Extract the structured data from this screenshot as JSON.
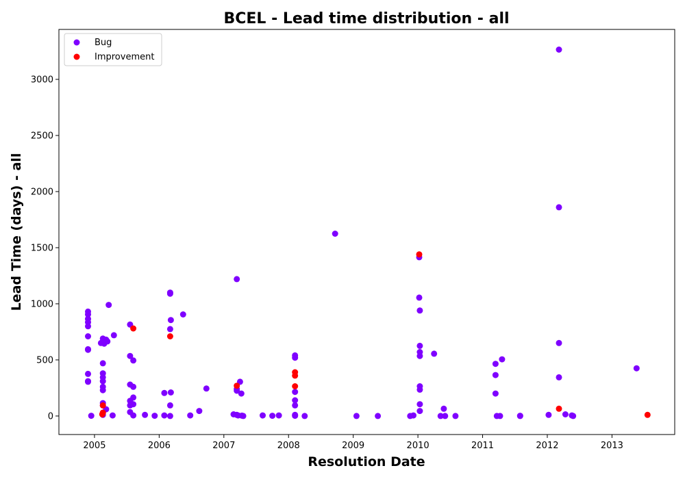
{
  "chart_data": {
    "type": "scatter",
    "title": "BCEL - Lead time distribution - all",
    "xlabel": "Resolution Date",
    "ylabel": "Lead Time (days) - all",
    "x_type": "year",
    "xlim": [
      2004.45,
      2013.97
    ],
    "ylim": [
      -165,
      3445
    ],
    "x_ticks": [
      2005,
      2006,
      2007,
      2008,
      2009,
      2010,
      2011,
      2012,
      2013
    ],
    "y_ticks": [
      0,
      500,
      1000,
      1500,
      2000,
      2500,
      3000
    ],
    "grid": false,
    "legend_position": "upper-left",
    "series": [
      {
        "name": "Bug",
        "color": "#7f00ff",
        "points": [
          [
            2004.95,
            2
          ],
          [
            2004.9,
            930
          ],
          [
            2004.9,
            905
          ],
          [
            2004.9,
            865
          ],
          [
            2004.9,
            835
          ],
          [
            2004.9,
            800
          ],
          [
            2004.9,
            710
          ],
          [
            2004.9,
            595
          ],
          [
            2004.9,
            590
          ],
          [
            2004.9,
            375
          ],
          [
            2004.9,
            310
          ],
          [
            2004.9,
            305
          ],
          [
            2005.1,
            650
          ],
          [
            2005.15,
            645
          ],
          [
            2005.13,
            690
          ],
          [
            2005.18,
            680
          ],
          [
            2005.2,
            665
          ],
          [
            2005.22,
            990
          ],
          [
            2005.3,
            720
          ],
          [
            2005.13,
            470
          ],
          [
            2005.13,
            380
          ],
          [
            2005.13,
            345
          ],
          [
            2005.13,
            310
          ],
          [
            2005.13,
            260
          ],
          [
            2005.13,
            230
          ],
          [
            2005.13,
            115
          ],
          [
            2005.13,
            95
          ],
          [
            2005.18,
            60
          ],
          [
            2005.13,
            25
          ],
          [
            2005.13,
            10
          ],
          [
            2005.28,
            5
          ],
          [
            2005.55,
            815
          ],
          [
            2005.55,
            535
          ],
          [
            2005.6,
            495
          ],
          [
            2005.55,
            280
          ],
          [
            2005.6,
            260
          ],
          [
            2005.6,
            165
          ],
          [
            2005.55,
            135
          ],
          [
            2005.6,
            105
          ],
          [
            2005.55,
            95
          ],
          [
            2005.55,
            35
          ],
          [
            2005.6,
            5
          ],
          [
            2005.78,
            10
          ],
          [
            2005.93,
            2
          ],
          [
            2006.17,
            1100
          ],
          [
            2006.17,
            1090
          ],
          [
            2006.18,
            855
          ],
          [
            2006.17,
            775
          ],
          [
            2006.37,
            905
          ],
          [
            2006.08,
            205
          ],
          [
            2006.18,
            210
          ],
          [
            2006.17,
            95
          ],
          [
            2006.08,
            5
          ],
          [
            2006.17,
            0
          ],
          [
            2006.48,
            5
          ],
          [
            2006.62,
            45
          ],
          [
            2006.73,
            245
          ],
          [
            2007.2,
            1220
          ],
          [
            2007.2,
            240
          ],
          [
            2007.2,
            225
          ],
          [
            2007.25,
            305
          ],
          [
            2007.27,
            200
          ],
          [
            2007.15,
            15
          ],
          [
            2007.2,
            10
          ],
          [
            2007.22,
            5
          ],
          [
            2007.28,
            3
          ],
          [
            2007.3,
            0
          ],
          [
            2007.6,
            5
          ],
          [
            2007.75,
            2
          ],
          [
            2007.85,
            5
          ],
          [
            2008.1,
            540
          ],
          [
            2008.1,
            520
          ],
          [
            2008.1,
            215
          ],
          [
            2008.1,
            140
          ],
          [
            2008.1,
            95
          ],
          [
            2008.1,
            10
          ],
          [
            2008.1,
            2
          ],
          [
            2008.25,
            0
          ],
          [
            2008.72,
            1625
          ],
          [
            2009.05,
            0
          ],
          [
            2009.38,
            0
          ],
          [
            2009.88,
            0
          ],
          [
            2009.93,
            5
          ],
          [
            2010.02,
            1415
          ],
          [
            2010.02,
            1055
          ],
          [
            2010.03,
            940
          ],
          [
            2010.03,
            625
          ],
          [
            2010.03,
            570
          ],
          [
            2010.03,
            535
          ],
          [
            2010.25,
            555
          ],
          [
            2010.03,
            265
          ],
          [
            2010.03,
            235
          ],
          [
            2010.03,
            105
          ],
          [
            2010.03,
            45
          ],
          [
            2010.35,
            0
          ],
          [
            2010.4,
            65
          ],
          [
            2010.42,
            0
          ],
          [
            2010.58,
            0
          ],
          [
            2011.2,
            465
          ],
          [
            2011.2,
            365
          ],
          [
            2011.2,
            200
          ],
          [
            2011.3,
            505
          ],
          [
            2011.22,
            0
          ],
          [
            2011.27,
            0
          ],
          [
            2011.58,
            0
          ],
          [
            2011.58,
            2
          ],
          [
            2012.02,
            10
          ],
          [
            2012.18,
            3265
          ],
          [
            2012.18,
            1860
          ],
          [
            2012.18,
            650
          ],
          [
            2012.18,
            345
          ],
          [
            2012.28,
            15
          ],
          [
            2012.38,
            5
          ],
          [
            2012.4,
            0
          ],
          [
            2013.38,
            425
          ]
        ]
      },
      {
        "name": "Improvement",
        "color": "#ff0000",
        "points": [
          [
            2005.13,
            95
          ],
          [
            2005.13,
            30
          ],
          [
            2005.12,
            15
          ],
          [
            2005.6,
            780
          ],
          [
            2006.17,
            710
          ],
          [
            2007.2,
            270
          ],
          [
            2008.1,
            390
          ],
          [
            2008.1,
            360
          ],
          [
            2008.1,
            265
          ],
          [
            2010.02,
            1440
          ],
          [
            2012.18,
            65
          ],
          [
            2013.55,
            10
          ]
        ]
      }
    ]
  }
}
